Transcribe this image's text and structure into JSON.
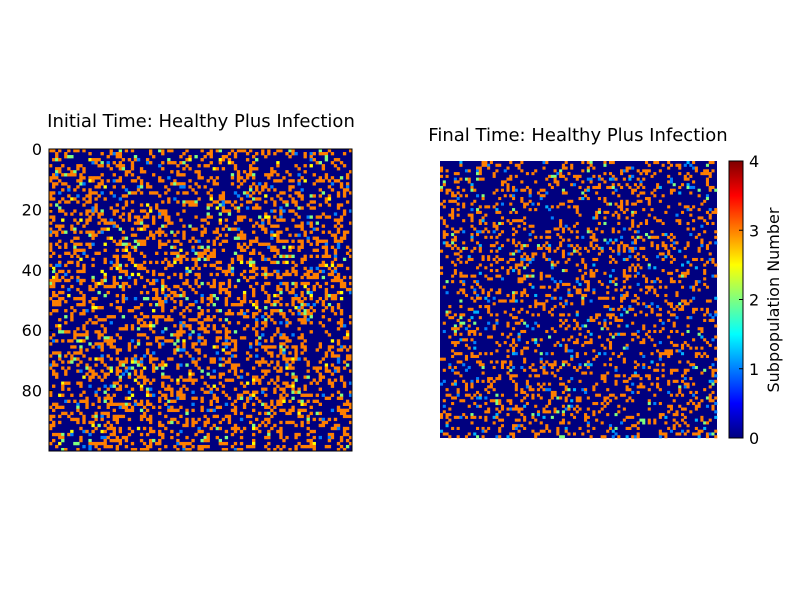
{
  "chart_data": [
    {
      "type": "heatmap",
      "title": "Initial Time: Healthy Plus Infection",
      "grid_size": [
        100,
        100
      ],
      "ylim": [
        0,
        99
      ],
      "yticks": [
        "0",
        "20",
        "40",
        "60",
        "80"
      ],
      "xticks_visible": false,
      "colormap": "jet",
      "value_range": [
        0,
        4
      ],
      "approx_cell_fractions": {
        "0": 0.7,
        "1": 0.02,
        "2": 0.02,
        "2.5": 0.01,
        "3": 0.25
      },
      "pattern_seed": 11
    },
    {
      "type": "heatmap",
      "title": "Final Time: Healthy Plus Infection",
      "grid_size": [
        100,
        100
      ],
      "axes_visible": false,
      "colormap": "jet",
      "value_range": [
        0,
        4
      ],
      "approx_cell_fractions": {
        "0": 0.79,
        "1": 0.02,
        "1.2": 0.01,
        "2": 0.01,
        "3": 0.17
      },
      "pattern_seed": 29
    }
  ],
  "colorbar": {
    "label": "Subpopulation Number",
    "ticks": [
      "0",
      "1",
      "2",
      "3",
      "4"
    ],
    "range": [
      0,
      4
    ]
  },
  "colors": {
    "jet_stops": [
      "#00007f",
      "#0000ff",
      "#007fff",
      "#00ffff",
      "#7fff7f",
      "#ffff00",
      "#ff7f00",
      "#ff0000",
      "#7f0000"
    ]
  }
}
